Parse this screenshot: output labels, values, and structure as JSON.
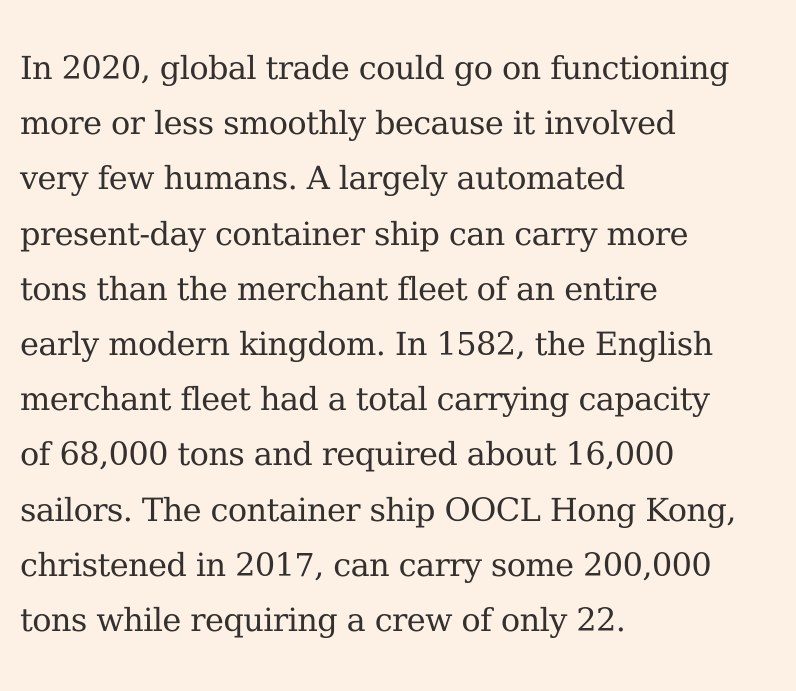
{
  "article": {
    "paragraph_lines": [
      "In 2020, global trade could go on functioning",
      "more or less smoothly because it involved",
      "very few humans. A largely automated",
      "present-day container ship can carry more",
      "tons than the merchant fleet of an entire",
      "early modern kingdom. In 1582, the English",
      "merchant fleet had a total carrying capacity",
      "of 68,000 tons and required about 16,000",
      "sailors. The container ship OOCL Hong Kong,",
      "christened in 2017, can carry some 200,000",
      "tons while requiring a crew of only 22."
    ]
  },
  "colors": {
    "background": "#fdf1e6",
    "text": "#33302e"
  }
}
